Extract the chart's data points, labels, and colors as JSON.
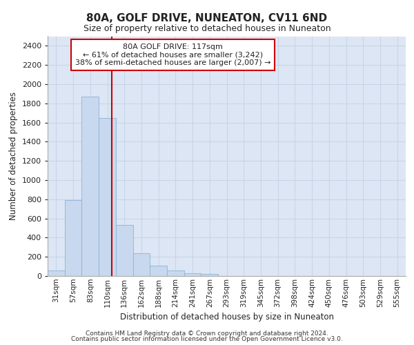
{
  "title": "80A, GOLF DRIVE, NUNEATON, CV11 6ND",
  "subtitle": "Size of property relative to detached houses in Nuneaton",
  "xlabel": "Distribution of detached houses by size in Nuneaton",
  "ylabel": "Number of detached properties",
  "footer_line1": "Contains HM Land Registry data © Crown copyright and database right 2024.",
  "footer_line2": "Contains public sector information licensed under the Open Government Licence v3.0.",
  "categories": [
    "31sqm",
    "57sqm",
    "83sqm",
    "110sqm",
    "136sqm",
    "162sqm",
    "188sqm",
    "214sqm",
    "241sqm",
    "267sqm",
    "293sqm",
    "319sqm",
    "345sqm",
    "372sqm",
    "398sqm",
    "424sqm",
    "450sqm",
    "476sqm",
    "503sqm",
    "529sqm",
    "555sqm"
  ],
  "values": [
    55,
    790,
    1870,
    1645,
    535,
    238,
    108,
    55,
    32,
    18,
    0,
    0,
    0,
    0,
    0,
    0,
    0,
    0,
    0,
    0,
    0
  ],
  "bar_color": "#c8d8ee",
  "bar_edge_color": "#8ab4d8",
  "annotation_title": "80A GOLF DRIVE: 117sqm",
  "annotation_line1": "← 61% of detached houses are smaller (3,242)",
  "annotation_line2": "38% of semi-detached houses are larger (2,007) →",
  "ylim": [
    0,
    2500
  ],
  "yticks": [
    0,
    200,
    400,
    600,
    800,
    1000,
    1200,
    1400,
    1600,
    1800,
    2000,
    2200,
    2400
  ],
  "vline_color": "#cc0000",
  "annotation_box_facecolor": "#ffffff",
  "annotation_box_edgecolor": "#cc0000",
  "grid_color": "#c8d4e8",
  "bg_color": "#dde6f4"
}
